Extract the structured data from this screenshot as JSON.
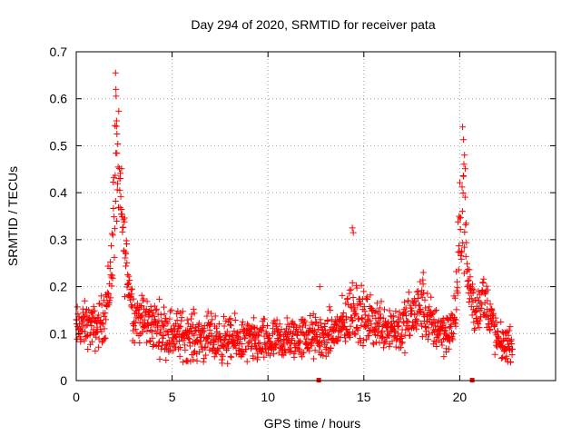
{
  "chart_data": {
    "type": "scatter",
    "title": "Day 294 of 2020, SRMTID for receiver pata",
    "xlabel": "GPS time / hours",
    "ylabel": "SRMTID / TECUs",
    "xlim": [
      0,
      25
    ],
    "ylim": [
      0,
      0.7
    ],
    "xticks": [
      "0",
      "5",
      "10",
      "15",
      "20"
    ],
    "yticks": [
      "0",
      "0.1",
      "0.2",
      "0.3",
      "0.4",
      "0.5",
      "0.6",
      "0.7"
    ],
    "grid": true,
    "marker": "+",
    "color": "#ff0000",
    "series": [
      {
        "name": "SRMTID",
        "envelope": [
          {
            "x": 0.0,
            "y": 0.11,
            "spread": 0.035
          },
          {
            "x": 0.5,
            "y": 0.12,
            "spread": 0.035
          },
          {
            "x": 1.0,
            "y": 0.11,
            "spread": 0.035
          },
          {
            "x": 1.5,
            "y": 0.14,
            "spread": 0.04
          },
          {
            "x": 1.8,
            "y": 0.22,
            "spread": 0.06
          },
          {
            "x": 2.0,
            "y": 0.4,
            "spread": 0.12
          },
          {
            "x": 2.1,
            "y": 0.48,
            "spread": 0.12
          },
          {
            "x": 2.3,
            "y": 0.38,
            "spread": 0.08
          },
          {
            "x": 2.6,
            "y": 0.25,
            "spread": 0.06
          },
          {
            "x": 3.0,
            "y": 0.14,
            "spread": 0.04
          },
          {
            "x": 5.0,
            "y": 0.1,
            "spread": 0.04
          },
          {
            "x": 8.0,
            "y": 0.085,
            "spread": 0.035
          },
          {
            "x": 10.0,
            "y": 0.08,
            "spread": 0.035
          },
          {
            "x": 12.0,
            "y": 0.095,
            "spread": 0.035
          },
          {
            "x": 13.0,
            "y": 0.09,
            "spread": 0.035
          },
          {
            "x": 14.0,
            "y": 0.12,
            "spread": 0.04
          },
          {
            "x": 14.5,
            "y": 0.16,
            "spread": 0.06
          },
          {
            "x": 15.0,
            "y": 0.13,
            "spread": 0.04
          },
          {
            "x": 17.0,
            "y": 0.11,
            "spread": 0.04
          },
          {
            "x": 18.0,
            "y": 0.16,
            "spread": 0.05
          },
          {
            "x": 18.5,
            "y": 0.12,
            "spread": 0.04
          },
          {
            "x": 19.5,
            "y": 0.1,
            "spread": 0.035
          },
          {
            "x": 19.8,
            "y": 0.15,
            "spread": 0.05
          },
          {
            "x": 20.0,
            "y": 0.3,
            "spread": 0.08
          },
          {
            "x": 20.2,
            "y": 0.42,
            "spread": 0.1
          },
          {
            "x": 20.4,
            "y": 0.22,
            "spread": 0.06
          },
          {
            "x": 20.8,
            "y": 0.14,
            "spread": 0.04
          },
          {
            "x": 21.2,
            "y": 0.18,
            "spread": 0.04
          },
          {
            "x": 21.6,
            "y": 0.14,
            "spread": 0.04
          },
          {
            "x": 22.0,
            "y": 0.08,
            "spread": 0.03
          },
          {
            "x": 22.7,
            "y": 0.075,
            "spread": 0.025
          }
        ],
        "outliers": [
          {
            "x": 2.05,
            "y": 0.655
          },
          {
            "x": 2.07,
            "y": 0.62
          },
          {
            "x": 2.1,
            "y": 0.553
          },
          {
            "x": 2.12,
            "y": 0.525
          },
          {
            "x": 14.4,
            "y": 0.325
          },
          {
            "x": 14.45,
            "y": 0.315
          },
          {
            "x": 20.15,
            "y": 0.54
          },
          {
            "x": 20.2,
            "y": 0.513
          },
          {
            "x": 20.25,
            "y": 0.48
          },
          {
            "x": 12.7,
            "y": 0.2
          },
          {
            "x": 18.1,
            "y": 0.23
          }
        ],
        "x_range": [
          0,
          22.75
        ],
        "sample_count": 1500
      }
    ],
    "zero_markers": [
      12.65,
      20.65
    ]
  }
}
